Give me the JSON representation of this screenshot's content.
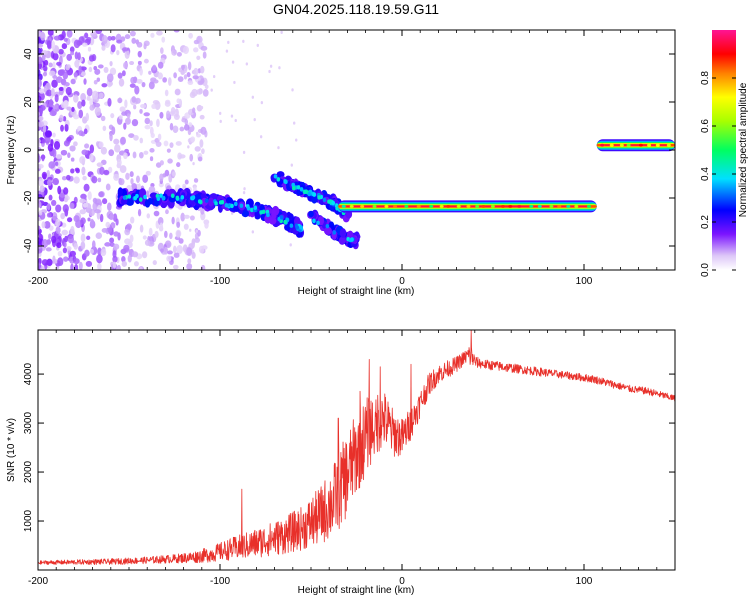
{
  "figure": {
    "title": "GN04.2025.118.19.59.G11"
  },
  "chart_data": [
    {
      "type": "heatmap",
      "xlabel": "Height of straight line (km)",
      "ylabel": "Frequency (Hz)",
      "xlim": [
        -200,
        150
      ],
      "ylim": [
        -50,
        50
      ],
      "xticks": [
        "-200",
        "-100",
        "0",
        "100"
      ],
      "yticks": [
        "-40",
        "-20",
        "0",
        "20",
        "40"
      ],
      "colorbar": {
        "label": "Normalized spectral amplitude",
        "range": [
          0,
          1
        ],
        "ticks": [
          "0.0",
          "0.2",
          "0.4",
          "0.6",
          "0.8"
        ]
      },
      "grid": false,
      "features": [
        {
          "name": "noise-cloud",
          "x_range": [
            -200,
            -115
          ],
          "freq_range": [
            -50,
            50
          ],
          "amplitude": 0.1
        },
        {
          "name": "main-track-a",
          "points": [
            [
              -155,
              -20
            ],
            [
              -120,
              -20
            ],
            [
              -100,
              -22
            ],
            [
              -80,
              -25
            ],
            [
              -65,
              -29
            ],
            [
              -55,
              -33
            ]
          ],
          "amplitude": 0.35
        },
        {
          "name": "main-track-b",
          "points": [
            [
              -70,
              -11
            ],
            [
              -60,
              -15
            ],
            [
              -50,
              -18
            ],
            [
              -40,
              -21
            ],
            [
              -35,
              -24
            ],
            [
              -30,
              -27
            ]
          ],
          "amplitude": 0.3
        },
        {
          "name": "lower-track",
          "points": [
            [
              -50,
              -28
            ],
            [
              -40,
              -33
            ],
            [
              -30,
              -37
            ],
            [
              -25,
              -38
            ]
          ],
          "amplitude": 0.2
        },
        {
          "name": "carrier-low",
          "x_range": [
            -35,
            107
          ],
          "freq": -23.5,
          "amplitude": 0.95
        },
        {
          "name": "carrier-high",
          "x_range": [
            107,
            150
          ],
          "freq": 2,
          "amplitude": 0.95
        }
      ]
    },
    {
      "type": "line",
      "xlabel": "Height of straight line (km)",
      "ylabel": "SNR (10 * v/v)",
      "xlim": [
        -200,
        150
      ],
      "ylim": [
        0,
        4900
      ],
      "xticks": [
        "-200",
        "-100",
        "0",
        "100"
      ],
      "yticks": [
        "1000",
        "2000",
        "3000",
        "4000"
      ],
      "grid": false,
      "series": [
        {
          "color": "#e8302a",
          "x": [
            -200,
            -180,
            -160,
            -140,
            -125,
            -115,
            -105,
            -95,
            -85,
            -75,
            -65,
            -55,
            -45,
            -38,
            -32,
            -26,
            -20,
            -15,
            -10,
            -5,
            0,
            5,
            10,
            15,
            20,
            25,
            30,
            35,
            38,
            40,
            45,
            55,
            65,
            75,
            85,
            95,
            105,
            115,
            125,
            135,
            145,
            150
          ],
          "values": [
            150,
            160,
            170,
            200,
            230,
            260,
            320,
            420,
            500,
            600,
            700,
            850,
            1100,
            1400,
            1800,
            2300,
            2700,
            3000,
            3100,
            2800,
            2700,
            3000,
            3400,
            3800,
            4000,
            4100,
            4200,
            4350,
            4400,
            4250,
            4200,
            4150,
            4100,
            4050,
            4000,
            3950,
            3900,
            3800,
            3700,
            3650,
            3550,
            3500
          ],
          "noise": [
            40,
            50,
            60,
            70,
            90,
            120,
            160,
            220,
            280,
            330,
            380,
            450,
            600,
            750,
            850,
            850,
            800,
            700,
            600,
            500,
            400,
            330,
            280,
            230,
            200,
            180,
            160,
            150,
            300,
            120,
            100,
            100,
            90,
            90,
            80,
            80,
            80,
            80,
            75,
            75,
            70,
            70
          ],
          "spikes": [
            [
              -88,
              1650
            ],
            [
              -35,
              3100
            ],
            [
              -23,
              3650
            ],
            [
              -18,
              4300
            ],
            [
              -15,
              2850
            ],
            [
              -12,
              4150
            ],
            [
              5,
              4200
            ],
            [
              38,
              4900
            ]
          ]
        }
      ]
    }
  ]
}
